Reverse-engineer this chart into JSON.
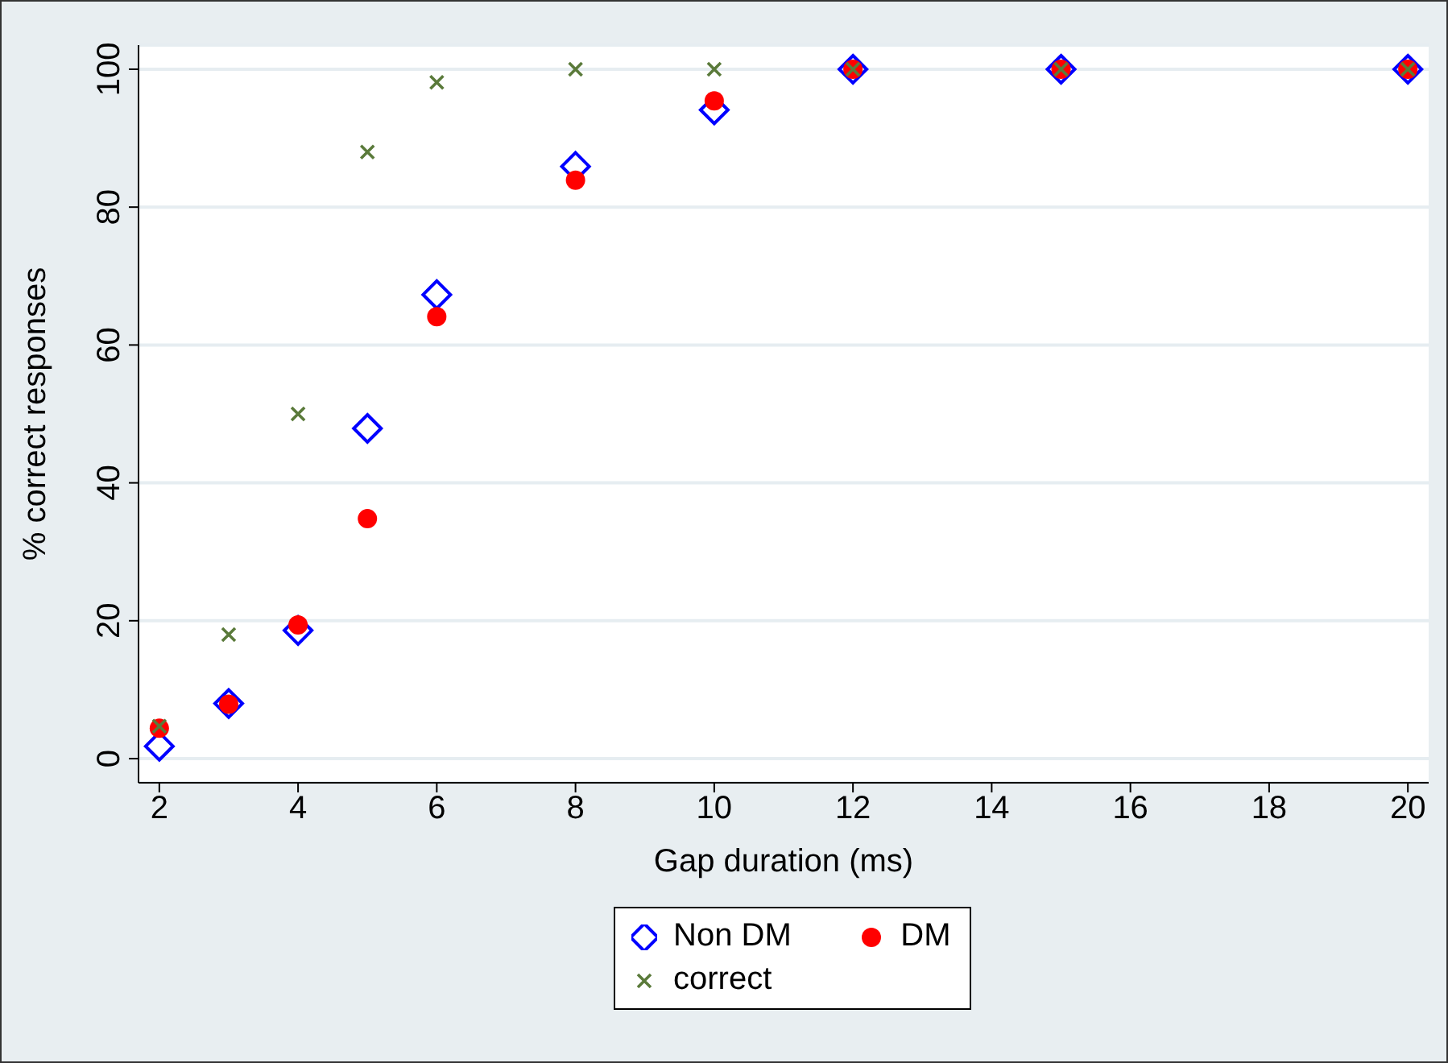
{
  "chart_data": {
    "type": "scatter",
    "xlabel": "Gap duration (ms)",
    "ylabel": "% correct responses",
    "x": [
      2,
      3,
      4,
      5,
      6,
      8,
      10,
      12,
      15,
      20
    ],
    "series": [
      {
        "name": "Non DM",
        "color": "#0000ff",
        "marker": "diamond",
        "values": [
          1.8,
          8.0,
          18.6,
          47.9,
          67.3,
          85.9,
          94.1,
          100,
          100,
          100
        ]
      },
      {
        "name": "DM",
        "color": "#ff0000",
        "marker": "circle",
        "values": [
          4.4,
          7.9,
          19.4,
          34.8,
          64.1,
          83.9,
          95.4,
          100,
          100,
          100
        ]
      },
      {
        "name": "correct",
        "color": "#5a7a3a",
        "marker": "cross",
        "values": [
          4.7,
          18,
          50,
          88,
          98.1,
          100,
          100,
          100,
          100,
          100
        ]
      }
    ],
    "xlim": [
      1.7,
      20.3
    ],
    "xticks": [
      2,
      4,
      6,
      8,
      10,
      12,
      14,
      16,
      18,
      20
    ],
    "ylim": [
      -3.5,
      103.5
    ],
    "yticks": [
      0,
      20,
      40,
      60,
      80,
      100
    ],
    "grid": "y",
    "legend": "bottom"
  }
}
